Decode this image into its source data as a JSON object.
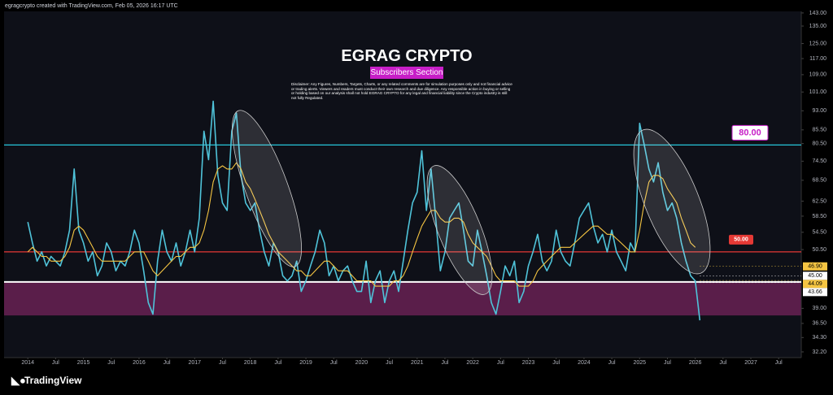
{
  "header": "egragcrypto created with TradingView.com, Feb 05, 2026 16:17 UTC",
  "footer": "TradingView",
  "chart_data": {
    "type": "line",
    "title": "EGRAG CRYPTO",
    "subtitle": "Subscribers Section",
    "disclaimer": "Disclaimer: Any Figures, Numbers, Targets, Charts, or any related comments are for simulation purposes only and not financial advice or trading alerts. Viewers and readers must conduct their own research and due diligence. Any responsible action in buying or selling or holding based on our analysis shall not hold EGRAG CRYPTO for any legal and financial liability since the Crypto industry is still not fully Regulated.",
    "ylog": true,
    "xlim": [
      "2013-07",
      "2027-11"
    ],
    "ylim": [
      31.4,
      148.7
    ],
    "xticks": [
      {
        "value": "2014-01",
        "label": "2014"
      },
      {
        "value": "2014-07",
        "label": "Jul"
      },
      {
        "value": "2015-01",
        "label": "2015"
      },
      {
        "value": "2015-07",
        "label": "Jul"
      },
      {
        "value": "2016-01",
        "label": "2016"
      },
      {
        "value": "2016-07",
        "label": "Jul"
      },
      {
        "value": "2017-01",
        "label": "2017"
      },
      {
        "value": "2017-07",
        "label": "Jul"
      },
      {
        "value": "2018-01",
        "label": "2018"
      },
      {
        "value": "2018-07",
        "label": "Jul"
      },
      {
        "value": "2019-01",
        "label": "2019"
      },
      {
        "value": "2019-07",
        "label": "Jul"
      },
      {
        "value": "2020-01",
        "label": "2020"
      },
      {
        "value": "2020-07",
        "label": "Jul"
      },
      {
        "value": "2021-01",
        "label": "2021"
      },
      {
        "value": "2021-07",
        "label": "Jul"
      },
      {
        "value": "2022-01",
        "label": "2022"
      },
      {
        "value": "2022-07",
        "label": "Jul"
      },
      {
        "value": "2023-01",
        "label": "2023"
      },
      {
        "value": "2023-07",
        "label": "Jul"
      },
      {
        "value": "2024-01",
        "label": "2024"
      },
      {
        "value": "2024-07",
        "label": "Jul"
      },
      {
        "value": "2025-01",
        "label": "2025"
      },
      {
        "value": "2025-07",
        "label": "Jul"
      },
      {
        "value": "2026-01",
        "label": "2026"
      },
      {
        "value": "2026-07",
        "label": "Jul"
      },
      {
        "value": "2027-01",
        "label": "2027"
      },
      {
        "value": "2027-07",
        "label": "Jul"
      }
    ],
    "yticks": [
      {
        "value": 143,
        "label": "143.00"
      },
      {
        "value": 135,
        "label": "135.00"
      },
      {
        "value": 125,
        "label": "125.00"
      },
      {
        "value": 117,
        "label": "117.00"
      },
      {
        "value": 109,
        "label": "109.00"
      },
      {
        "value": 101,
        "label": "101.00"
      },
      {
        "value": 93,
        "label": "93.00"
      },
      {
        "value": 85.5,
        "label": "85.50"
      },
      {
        "value": 80.5,
        "label": "80.50"
      },
      {
        "value": 74.5,
        "label": "74.50"
      },
      {
        "value": 68.5,
        "label": "68.50"
      },
      {
        "value": 62.5,
        "label": "62.50"
      },
      {
        "value": 58.5,
        "label": "58.50"
      },
      {
        "value": 54.5,
        "label": "54.50"
      },
      {
        "value": 50.5,
        "label": "50.50"
      },
      {
        "value": 39,
        "label": "39.00"
      },
      {
        "value": 36.5,
        "label": "36.50"
      },
      {
        "value": 34.3,
        "label": "34.30"
      },
      {
        "value": 32.2,
        "label": "32.20"
      }
    ],
    "band": [
      37.8,
      43.8
    ],
    "band_color": "#5a1e4a",
    "levels": [
      {
        "value": 80,
        "label": "80.00",
        "color": "#26c6da"
      },
      {
        "value": 50,
        "label": "50.00",
        "color": "#e53935"
      },
      {
        "value": 43.8,
        "color": "#ffffff"
      }
    ],
    "price_labels": [
      {
        "value": 46.9,
        "label": "46.90",
        "color": "#f5c542"
      },
      {
        "value": 45,
        "label": "45.00",
        "color": "#ffffff"
      },
      {
        "value": 44.09,
        "label": "44.09",
        "color": "#f5c542"
      },
      {
        "value": 43.66,
        "label": "43.66",
        "color": "#ffffff"
      }
    ],
    "x": [
      "2014-01",
      "2014-02",
      "2014-03",
      "2014-04",
      "2014-05",
      "2014-06",
      "2014-07",
      "2014-08",
      "2014-09",
      "2014-10",
      "2014-11",
      "2014-12",
      "2015-01",
      "2015-02",
      "2015-03",
      "2015-04",
      "2015-05",
      "2015-06",
      "2015-07",
      "2015-08",
      "2015-09",
      "2015-10",
      "2015-11",
      "2015-12",
      "2016-01",
      "2016-02",
      "2016-03",
      "2016-04",
      "2016-05",
      "2016-06",
      "2016-07",
      "2016-08",
      "2016-09",
      "2016-10",
      "2016-11",
      "2016-12",
      "2017-01",
      "2017-02",
      "2017-03",
      "2017-04",
      "2017-05",
      "2017-06",
      "2017-07",
      "2017-08",
      "2017-09",
      "2017-10",
      "2017-11",
      "2017-12",
      "2018-01",
      "2018-02",
      "2018-03",
      "2018-04",
      "2018-05",
      "2018-06",
      "2018-07",
      "2018-08",
      "2018-09",
      "2018-10",
      "2018-11",
      "2018-12",
      "2019-01",
      "2019-02",
      "2019-03",
      "2019-04",
      "2019-05",
      "2019-06",
      "2019-07",
      "2019-08",
      "2019-09",
      "2019-10",
      "2019-11",
      "2019-12",
      "2020-01",
      "2020-02",
      "2020-03",
      "2020-04",
      "2020-05",
      "2020-06",
      "2020-07",
      "2020-08",
      "2020-09",
      "2020-10",
      "2020-11",
      "2020-12",
      "2021-01",
      "2021-02",
      "2021-03",
      "2021-04",
      "2021-05",
      "2021-06",
      "2021-07",
      "2021-08",
      "2021-09",
      "2021-10",
      "2021-11",
      "2021-12",
      "2022-01",
      "2022-02",
      "2022-03",
      "2022-04",
      "2022-05",
      "2022-06",
      "2022-07",
      "2022-08",
      "2022-09",
      "2022-10",
      "2022-11",
      "2022-12",
      "2023-01",
      "2023-02",
      "2023-03",
      "2023-04",
      "2023-05",
      "2023-06",
      "2023-07",
      "2023-08",
      "2023-09",
      "2023-10",
      "2023-11",
      "2023-12",
      "2024-01",
      "2024-02",
      "2024-03",
      "2024-04",
      "2024-05",
      "2024-06",
      "2024-07",
      "2024-08",
      "2024-09",
      "2024-10",
      "2024-11",
      "2024-12",
      "2025-01",
      "2025-02",
      "2025-03",
      "2025-04",
      "2025-05",
      "2025-06",
      "2025-07",
      "2025-08",
      "2025-09",
      "2025-10",
      "2025-11",
      "2025-12",
      "2026-01",
      "2026-02"
    ],
    "series": [
      {
        "color": "#4fc3d9",
        "values": [
          57,
          52,
          48,
          50,
          47,
          49,
          48,
          47,
          50,
          55,
          72,
          55,
          52,
          48,
          50,
          45,
          47,
          52,
          50,
          46,
          48,
          47,
          50,
          55,
          52,
          46,
          40,
          38,
          48,
          55,
          50,
          48,
          52,
          47,
          50,
          55,
          50,
          58,
          85,
          75,
          97,
          70,
          62,
          60,
          85,
          92,
          70,
          62,
          60,
          62,
          55,
          50,
          47,
          52,
          50,
          45,
          44,
          45,
          48,
          42,
          44,
          47,
          50,
          55,
          52,
          45,
          47,
          44,
          46,
          47,
          44,
          42,
          42,
          48,
          40,
          44,
          46,
          40,
          44,
          46,
          42,
          48,
          55,
          62,
          65,
          78,
          60,
          72,
          58,
          46,
          50,
          58,
          60,
          62,
          55,
          48,
          47,
          55,
          50,
          45,
          40,
          38,
          42,
          47,
          45,
          48,
          40,
          42,
          47,
          50,
          54,
          48,
          46,
          48,
          55,
          50,
          48,
          47,
          52,
          58,
          60,
          62,
          56,
          52,
          54,
          50,
          55,
          50,
          48,
          46,
          52,
          50,
          88,
          80,
          72,
          68,
          74,
          65,
          60,
          62,
          58,
          52,
          48,
          45,
          44,
          37
        ]
      },
      {
        "color": "#f5c542",
        "values": [
          50,
          51,
          50,
          49,
          49,
          48,
          48,
          48,
          49,
          51,
          55,
          56,
          55,
          53,
          51,
          49,
          48,
          48,
          48,
          48,
          48,
          48,
          49,
          50,
          50,
          50,
          48,
          46,
          45,
          46,
          47,
          48,
          49,
          49,
          50,
          51,
          51,
          52,
          55,
          60,
          68,
          72,
          73,
          72,
          72,
          74,
          72,
          68,
          66,
          63,
          60,
          57,
          54,
          52,
          50,
          49,
          48,
          47,
          46,
          46,
          45,
          45,
          46,
          47,
          48,
          48,
          47,
          46,
          46,
          46,
          45,
          44,
          44,
          44,
          44,
          43,
          43,
          43,
          43,
          44,
          44,
          45,
          47,
          50,
          53,
          56,
          58,
          60,
          60,
          58,
          57,
          57,
          58,
          58,
          57,
          54,
          52,
          51,
          50,
          49,
          47,
          45,
          44,
          44,
          44,
          44,
          43,
          43,
          43,
          44,
          46,
          47,
          48,
          49,
          50,
          51,
          51,
          51,
          52,
          53,
          54,
          55,
          56,
          56,
          55,
          54,
          54,
          53,
          52,
          51,
          50,
          50,
          55,
          62,
          68,
          70,
          70,
          69,
          66,
          64,
          62,
          58,
          55,
          52,
          51,
          null
        ]
      }
    ]
  }
}
